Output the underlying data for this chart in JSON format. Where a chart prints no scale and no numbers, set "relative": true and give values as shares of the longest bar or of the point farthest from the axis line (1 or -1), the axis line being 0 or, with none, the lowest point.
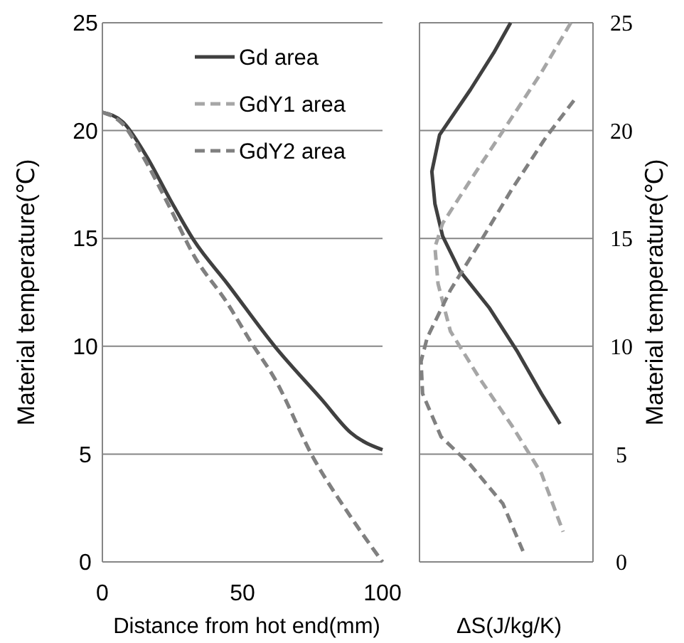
{
  "chart_data": [
    {
      "type": "line",
      "xlabel": "Distance from hot end(mm)",
      "ylabel": "Material temperature(℃)",
      "xlim": [
        0,
        100
      ],
      "xticks": [
        0,
        50,
        100
      ],
      "ylim": [
        0,
        25
      ],
      "yticks": [
        0,
        5,
        10,
        15,
        20,
        25
      ],
      "grid": "y",
      "legend": "top right",
      "series": [
        {
          "name": "Gd area",
          "color": "#404040",
          "line_style": "solid",
          "x": [
            0,
            7.3,
            15.8,
            24.2,
            32.7,
            44.6,
            61.5,
            78.5,
            88.6,
            100
          ],
          "values": [
            20.85,
            20.4,
            18.8,
            16.8,
            14.9,
            12.9,
            10.0,
            7.5,
            6.0,
            5.2
          ]
        },
        {
          "name": "GdY1 area",
          "color": "#a6a6a6",
          "line_style": "dashed",
          "x": [
            0,
            7.3,
            15.8,
            24.2,
            32.7,
            44.6,
            53,
            61.5,
            75,
            88.6,
            100
          ],
          "values": [
            20.85,
            20.3,
            18.5,
            16.4,
            14.2,
            12.0,
            10.2,
            8.5,
            4.9,
            2.1,
            0
          ]
        },
        {
          "name": "GdY2 area",
          "color": "#808080",
          "line_style": "dashed",
          "x": [
            0,
            7.3,
            15.8,
            24.2,
            32.7,
            44.6,
            53,
            61.5,
            75,
            88.6,
            100
          ],
          "values": [
            20.85,
            20.3,
            18.5,
            16.4,
            14.2,
            12.0,
            10.2,
            8.5,
            4.9,
            2.1,
            0
          ]
        }
      ]
    },
    {
      "type": "line",
      "orientation": "horizontal",
      "xlabel": "ΔS(J/kg/K)",
      "ylabel": "Material temperature(℃)",
      "relative": true,
      "tick_labels": "y",
      "ylim": [
        0,
        25
      ],
      "yticks": [
        0,
        5,
        10,
        15,
        20,
        25
      ],
      "grid": "y",
      "series": [
        {
          "color": "#404040",
          "line_style": "solid",
          "values": [
            0.59,
            0.48,
            0.33,
            0.13,
            0.08,
            0.1,
            0.15,
            0.26,
            0.45,
            0.63,
            0.79,
            0.91
          ],
          "x": [
            25,
            23.6,
            21.9,
            19.8,
            18.1,
            16.6,
            15.1,
            13.5,
            11.8,
            9.8,
            7.8,
            6.4
          ]
        },
        {
          "color": "#a6a6a6",
          "line_style": "dashed",
          "values": [
            0.98,
            0.79,
            0.57,
            0.33,
            0.15,
            0.1,
            0.12,
            0.2,
            0.39,
            0.6,
            0.79,
            0.93
          ],
          "x": [
            25,
            22.7,
            20.3,
            17.7,
            15.7,
            14.6,
            12.9,
            10.7,
            8.5,
            6.3,
            4.1,
            1.4
          ]
        },
        {
          "color": "#808080",
          "line_style": "dashed",
          "values": [
            1,
            0.82,
            0.6,
            0.39,
            0.2,
            0.05,
            0.01,
            0.02,
            0.14,
            0.33,
            0.54,
            0.67
          ],
          "x": [
            21.4,
            19.7,
            17.3,
            14.8,
            12.6,
            10.4,
            9.3,
            7.8,
            5.8,
            4.5,
            2.7,
            0.5
          ]
        }
      ]
    }
  ]
}
